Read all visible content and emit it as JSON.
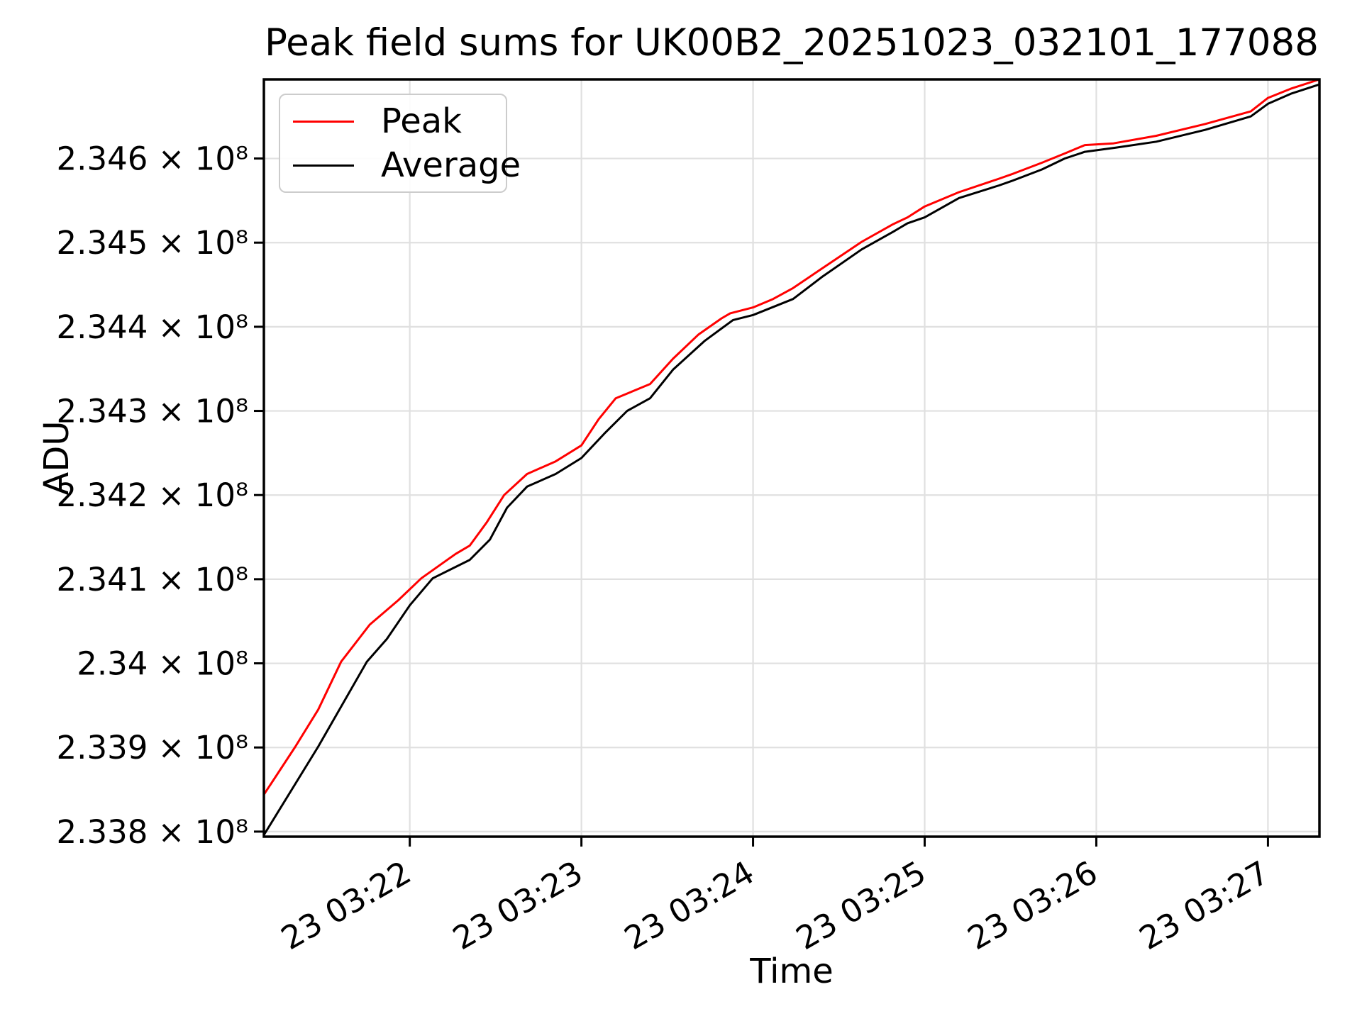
{
  "title": "Peak field sums for UK00B2_20251023_032101_177088",
  "xlabel": "Time",
  "ylabel": "ADU",
  "legend": [
    {
      "label": "Peak",
      "color": "#ff0000"
    },
    {
      "label": "Average",
      "color": "#000000"
    }
  ],
  "colors": {
    "grid": "#e0e0e0",
    "axes": "#000000",
    "background": "#ffffff",
    "peak_line": "#ff0000",
    "average_line": "#000000"
  },
  "chart_data": {
    "type": "line",
    "title": "Peak field sums for UK00B2_20251023_032101_177088",
    "xlabel": "Time",
    "ylabel": "ADU",
    "grid": true,
    "legend_position": "upper left",
    "x_unit": "seconds after 23 03:21:00",
    "y_multiplier": 100000000,
    "xlim": [
      9,
      378
    ],
    "ylim": [
      2.33794,
      2.34694
    ],
    "x_ticks": [
      {
        "t": 60,
        "label": "23 03:22"
      },
      {
        "t": 120,
        "label": "23 03:23"
      },
      {
        "t": 180,
        "label": "23 03:24"
      },
      {
        "t": 240,
        "label": "23 03:25"
      },
      {
        "t": 300,
        "label": "23 03:26"
      },
      {
        "t": 360,
        "label": "23 03:27"
      }
    ],
    "y_ticks": [
      {
        "v": 2.338,
        "label": "2.338 × 10⁸"
      },
      {
        "v": 2.339,
        "label": "2.339 × 10⁸"
      },
      {
        "v": 2.34,
        "label": "2.34 × 10⁸"
      },
      {
        "v": 2.341,
        "label": "2.341 × 10⁸"
      },
      {
        "v": 2.342,
        "label": "2.342 × 10⁸"
      },
      {
        "v": 2.343,
        "label": "2.343 × 10⁸"
      },
      {
        "v": 2.344,
        "label": "2.344 × 10⁸"
      },
      {
        "v": 2.345,
        "label": "2.345 × 10⁸"
      },
      {
        "v": 2.346,
        "label": "2.346 × 10⁸"
      }
    ],
    "series": [
      {
        "name": "Peak",
        "color": "#ff0000",
        "points": [
          [
            9,
            2.33844
          ],
          [
            20,
            2.33901
          ],
          [
            28,
            2.33945
          ],
          [
            36,
            2.34002
          ],
          [
            46,
            2.34046
          ],
          [
            56,
            2.34075
          ],
          [
            64,
            2.34101
          ],
          [
            76,
            2.3413
          ],
          [
            81,
            2.3414
          ],
          [
            87,
            2.34168
          ],
          [
            93,
            2.342
          ],
          [
            101,
            2.34225
          ],
          [
            111,
            2.3424
          ],
          [
            120,
            2.34259
          ],
          [
            126,
            2.3429
          ],
          [
            132,
            2.34315
          ],
          [
            144,
            2.34332
          ],
          [
            152,
            2.34362
          ],
          [
            161,
            2.34391
          ],
          [
            169,
            2.3441
          ],
          [
            172,
            2.34416
          ],
          [
            180,
            2.34423
          ],
          [
            187,
            2.34433
          ],
          [
            194,
            2.34446
          ],
          [
            204,
            2.34469
          ],
          [
            218,
            2.34501
          ],
          [
            229,
            2.34522
          ],
          [
            234,
            2.3453
          ],
          [
            240,
            2.34543
          ],
          [
            252,
            2.3456
          ],
          [
            266,
            2.34576
          ],
          [
            271,
            2.34582
          ],
          [
            281,
            2.34595
          ],
          [
            289,
            2.34606
          ],
          [
            296,
            2.34616
          ],
          [
            306,
            2.34618
          ],
          [
            321,
            2.34627
          ],
          [
            338,
            2.34641
          ],
          [
            354,
            2.34656
          ],
          [
            360,
            2.34672
          ],
          [
            368,
            2.34683
          ],
          [
            378,
            2.34694
          ]
        ]
      },
      {
        "name": "Average",
        "color": "#000000",
        "points": [
          [
            9,
            2.33796
          ],
          [
            28,
            2.33901
          ],
          [
            45,
            2.34002
          ],
          [
            52,
            2.34029
          ],
          [
            60,
            2.34069
          ],
          [
            68,
            2.34101
          ],
          [
            81,
            2.34123
          ],
          [
            88,
            2.34147
          ],
          [
            94,
            2.34185
          ],
          [
            101,
            2.3421
          ],
          [
            111,
            2.34225
          ],
          [
            120,
            2.34244
          ],
          [
            128,
            2.34273
          ],
          [
            136,
            2.343
          ],
          [
            144,
            2.34315
          ],
          [
            152,
            2.34349
          ],
          [
            163,
            2.34383
          ],
          [
            173,
            2.34408
          ],
          [
            180,
            2.34414
          ],
          [
            194,
            2.34433
          ],
          [
            204,
            2.34459
          ],
          [
            218,
            2.34492
          ],
          [
            229,
            2.34513
          ],
          [
            234,
            2.34523
          ],
          [
            240,
            2.3453
          ],
          [
            252,
            2.34553
          ],
          [
            266,
            2.34568
          ],
          [
            271,
            2.34574
          ],
          [
            281,
            2.34587
          ],
          [
            289,
            2.346
          ],
          [
            296,
            2.34608
          ],
          [
            307,
            2.34613
          ],
          [
            321,
            2.3462
          ],
          [
            338,
            2.34634
          ],
          [
            354,
            2.3465
          ],
          [
            360,
            2.34665
          ],
          [
            368,
            2.34677
          ],
          [
            378,
            2.34688
          ]
        ]
      }
    ]
  }
}
